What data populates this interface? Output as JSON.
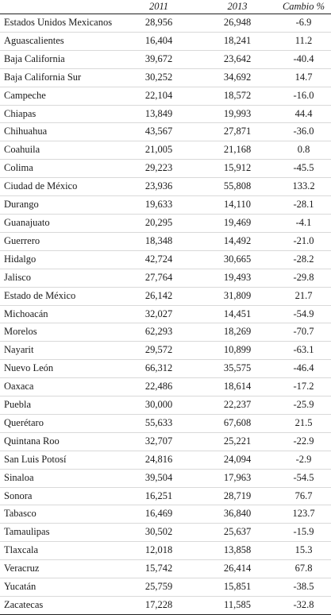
{
  "table": {
    "headers": {
      "state": "",
      "y2011": "2011",
      "y2013": "2013",
      "change": "Cambio %"
    },
    "rows": [
      {
        "state": "Estados Unidos Mexicanos",
        "y2011": "28,956",
        "y2013": "26,948",
        "change": "-6.9"
      },
      {
        "state": "Aguascalientes",
        "y2011": "16,404",
        "y2013": "18,241",
        "change": "11.2"
      },
      {
        "state": "Baja California",
        "y2011": "39,672",
        "y2013": "23,642",
        "change": "-40.4"
      },
      {
        "state": "Baja California Sur",
        "y2011": "30,252",
        "y2013": "34,692",
        "change": "14.7"
      },
      {
        "state": "Campeche",
        "y2011": "22,104",
        "y2013": "18,572",
        "change": "-16.0"
      },
      {
        "state": "Chiapas",
        "y2011": "13,849",
        "y2013": "19,993",
        "change": "44.4"
      },
      {
        "state": "Chihuahua",
        "y2011": "43,567",
        "y2013": "27,871",
        "change": "-36.0"
      },
      {
        "state": "Coahuila",
        "y2011": "21,005",
        "y2013": "21,168",
        "change": "0.8"
      },
      {
        "state": "Colima",
        "y2011": "29,223",
        "y2013": "15,912",
        "change": "-45.5"
      },
      {
        "state": "Ciudad de México",
        "y2011": "23,936",
        "y2013": "55,808",
        "change": "133.2"
      },
      {
        "state": "Durango",
        "y2011": "19,633",
        "y2013": "14,110",
        "change": "-28.1"
      },
      {
        "state": "Guanajuato",
        "y2011": "20,295",
        "y2013": "19,469",
        "change": "-4.1"
      },
      {
        "state": "Guerrero",
        "y2011": "18,348",
        "y2013": "14,492",
        "change": "-21.0"
      },
      {
        "state": "Hidalgo",
        "y2011": "42,724",
        "y2013": "30,665",
        "change": "-28.2"
      },
      {
        "state": "Jalisco",
        "y2011": "27,764",
        "y2013": "19,493",
        "change": "-29.8"
      },
      {
        "state": "Estado de México",
        "y2011": "26,142",
        "y2013": "31,809",
        "change": "21.7"
      },
      {
        "state": "Michoacán",
        "y2011": "32,027",
        "y2013": "14,451",
        "change": "-54.9"
      },
      {
        "state": "Morelos",
        "y2011": "62,293",
        "y2013": "18,269",
        "change": "-70.7"
      },
      {
        "state": "Nayarit",
        "y2011": "29,572",
        "y2013": "10,899",
        "change": "-63.1"
      },
      {
        "state": "Nuevo León",
        "y2011": "66,312",
        "y2013": "35,575",
        "change": "-46.4"
      },
      {
        "state": "Oaxaca",
        "y2011": "22,486",
        "y2013": "18,614",
        "change": "-17.2"
      },
      {
        "state": "Puebla",
        "y2011": "30,000",
        "y2013": "22,237",
        "change": "-25.9"
      },
      {
        "state": "Querétaro",
        "y2011": "55,633",
        "y2013": "67,608",
        "change": "21.5"
      },
      {
        "state": "Quintana Roo",
        "y2011": "32,707",
        "y2013": "25,221",
        "change": "-22.9"
      },
      {
        "state": "San Luis Potosí",
        "y2011": "24,816",
        "y2013": "24,094",
        "change": "-2.9"
      },
      {
        "state": "Sinaloa",
        "y2011": "39,504",
        "y2013": "17,963",
        "change": "-54.5"
      },
      {
        "state": "Sonora",
        "y2011": "16,251",
        "y2013": "28,719",
        "change": "76.7"
      },
      {
        "state": "Tabasco",
        "y2011": "16,469",
        "y2013": "36,840",
        "change": "123.7"
      },
      {
        "state": "Tamaulipas",
        "y2011": "30,502",
        "y2013": "25,637",
        "change": "-15.9"
      },
      {
        "state": "Tlaxcala",
        "y2011": "12,018",
        "y2013": "13,858",
        "change": "15.3"
      },
      {
        "state": "Veracruz",
        "y2011": "15,742",
        "y2013": "26,414",
        "change": "67.8"
      },
      {
        "state": "Yucatán",
        "y2011": "25,759",
        "y2013": "15,851",
        "change": "-38.5"
      },
      {
        "state": "Zacatecas",
        "y2011": "17,228",
        "y2013": "11,585",
        "change": "-32.8"
      }
    ]
  }
}
